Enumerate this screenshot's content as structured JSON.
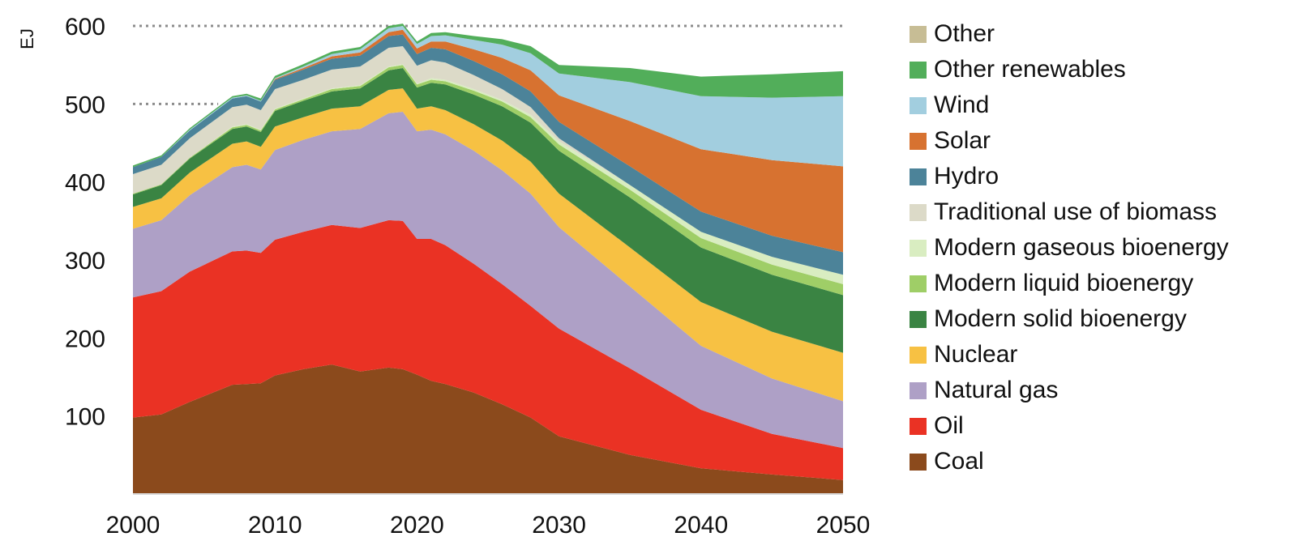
{
  "chart_data": {
    "type": "area",
    "stacked": true,
    "title": "",
    "ylabel": "EJ",
    "xlabel": "",
    "xlim": [
      2000,
      2050
    ],
    "ylim": [
      0,
      600
    ],
    "x_ticks": [
      "2000",
      "2010",
      "2020",
      "2030",
      "2040",
      "2050"
    ],
    "y_ticks": [
      "100",
      "200",
      "300",
      "400",
      "500",
      "600"
    ],
    "gridlines": [
      {
        "y": 500,
        "x_from": 2000,
        "x_to": 2006,
        "style": "dotted"
      },
      {
        "y": 600,
        "x_from": 2000,
        "x_to": 2050,
        "style": "dotted"
      }
    ],
    "legend_position": "right",
    "x": [
      2000,
      2002,
      2004,
      2007,
      2008,
      2009,
      2010,
      2012,
      2014,
      2016,
      2018,
      2019,
      2020,
      2021,
      2022,
      2024,
      2026,
      2028,
      2030,
      2035,
      2040,
      2045,
      2050
    ],
    "series": [
      {
        "name": "Coal",
        "color": "#8B4A1C",
        "values": [
          98,
          102,
          118,
          140,
          141,
          142,
          152,
          160,
          166,
          157,
          162,
          160,
          153,
          145,
          141,
          130,
          115,
          98,
          74,
          50,
          33,
          25,
          18
        ]
      },
      {
        "name": "Oil",
        "color": "#EA3224",
        "values": [
          154,
          158,
          167,
          171,
          171,
          167,
          174,
          176,
          179,
          184,
          189,
          190,
          174,
          182,
          178,
          165,
          154,
          143,
          138,
          111,
          75,
          52,
          41
        ]
      },
      {
        "name": "Natural gas",
        "color": "#AEA0C6",
        "values": [
          88,
          91,
          98,
          108,
          110,
          107,
          115,
          118,
          120,
          127,
          137,
          140,
          138,
          140,
          142,
          145,
          146,
          144,
          130,
          105,
          82,
          71,
          60
        ]
      },
      {
        "name": "Nuclear",
        "color": "#F7C143",
        "values": [
          28,
          28,
          29,
          30,
          30,
          29,
          30,
          29,
          29,
          29,
          30,
          30,
          29,
          30,
          31,
          34,
          38,
          41,
          43,
          50,
          56,
          60,
          62
        ]
      },
      {
        "name": "Modern solid bioenergy",
        "color": "#3A8443",
        "values": [
          16,
          17,
          18,
          19,
          19,
          19,
          20,
          21,
          22,
          23,
          25,
          26,
          27,
          30,
          33,
          38,
          44,
          50,
          55,
          64,
          70,
          73,
          74
        ]
      },
      {
        "name": "Modern liquid bioenergy",
        "color": "#9FCE67",
        "values": [
          1,
          1,
          1,
          2,
          2,
          2,
          2,
          2,
          3,
          3,
          4,
          4,
          4,
          4,
          4,
          5,
          6,
          7,
          8,
          10,
          12,
          13,
          14
        ]
      },
      {
        "name": "Modern gaseous bioenergy",
        "color": "#D9EDC1",
        "values": [
          0,
          0,
          0,
          1,
          1,
          1,
          1,
          1,
          1,
          1,
          1,
          1,
          1,
          2,
          2,
          2,
          2,
          3,
          4,
          6,
          8,
          10,
          12
        ]
      },
      {
        "name": "Traditional use of biomass",
        "color": "#DCDAC8",
        "values": [
          25,
          25,
          25,
          25,
          25,
          25,
          25,
          24,
          24,
          24,
          24,
          23,
          23,
          23,
          22,
          18,
          14,
          10,
          4,
          0,
          0,
          0,
          0
        ]
      },
      {
        "name": "Hydro",
        "color": "#4C8399",
        "values": [
          9,
          10,
          10,
          11,
          11,
          11,
          12,
          13,
          14,
          14,
          15,
          15,
          15,
          16,
          17,
          18,
          19,
          20,
          21,
          24,
          26,
          27,
          29
        ]
      },
      {
        "name": "Solar",
        "color": "#D77230",
        "values": [
          0,
          0,
          0,
          0,
          0,
          0,
          1,
          2,
          3,
          4,
          5,
          6,
          7,
          8,
          10,
          15,
          21,
          27,
          34,
          58,
          80,
          97,
          110
        ]
      },
      {
        "name": "Wind",
        "color": "#A2CEDF",
        "values": [
          0,
          0,
          1,
          1,
          1,
          1,
          1,
          2,
          3,
          4,
          5,
          5,
          6,
          7,
          8,
          12,
          17,
          22,
          28,
          50,
          68,
          80,
          90
        ]
      },
      {
        "name": "Other renewables",
        "color": "#52AE5A",
        "values": [
          2,
          2,
          2,
          2,
          2,
          3,
          3,
          3,
          3,
          3,
          3,
          3,
          3,
          4,
          4,
          5,
          7,
          9,
          11,
          18,
          25,
          30,
          32
        ]
      },
      {
        "name": "Other",
        "color": "#C7BD95",
        "values": [
          0,
          0,
          0,
          0,
          0,
          0,
          0,
          0,
          0,
          0,
          0,
          0,
          0,
          0,
          0,
          0,
          0,
          0,
          0,
          0,
          0,
          0,
          0
        ]
      }
    ]
  }
}
